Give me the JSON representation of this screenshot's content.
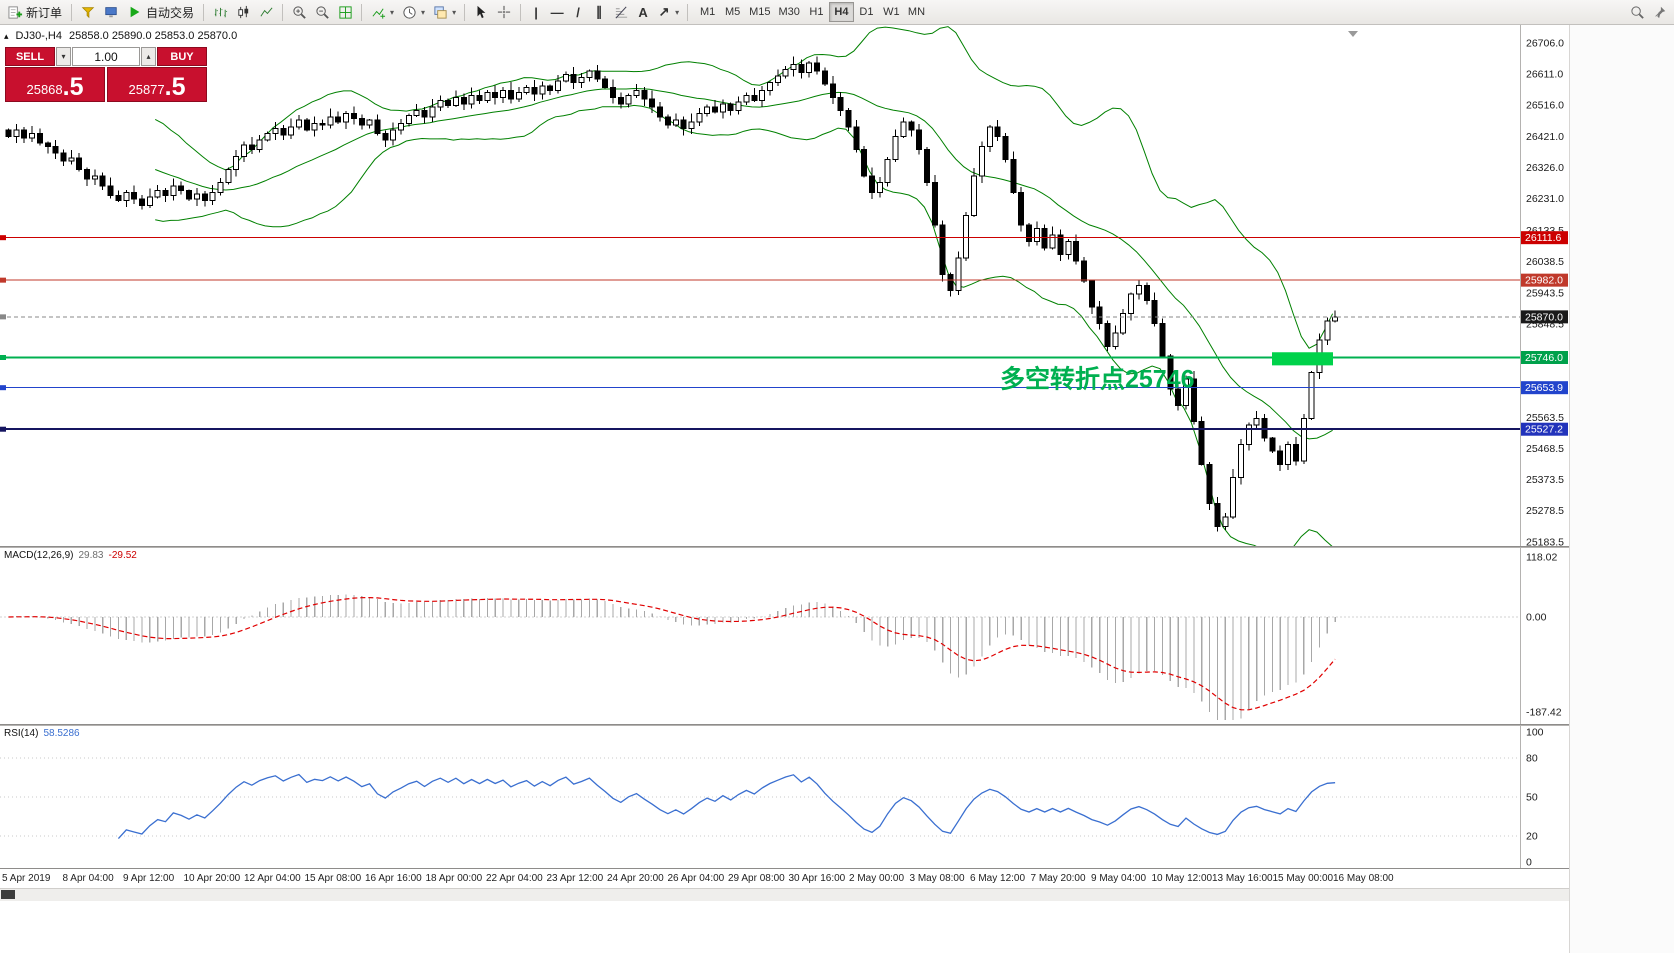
{
  "toolbar": {
    "new_order_label": "新订单",
    "auto_trading_label": "自动交易",
    "timeframes": [
      "M1",
      "M5",
      "M15",
      "M30",
      "H1",
      "H4",
      "D1",
      "W1",
      "MN"
    ],
    "active_timeframe": "H4"
  },
  "icons": {
    "chart_marker": "▴",
    "caret": "▾",
    "spin_up": "▴",
    "spin_down": "▾",
    "vertical_line": "|",
    "horizontal_line": "—",
    "trendline": "/",
    "channel": "∥",
    "text_tool": "A",
    "arrow_tool": "↗"
  },
  "chart_header": {
    "symbol_period": "DJ30-,H4",
    "ohlc": "25858.0 25890.0 25853.0 25870.0"
  },
  "order_panel": {
    "sell_label": "SELL",
    "buy_label": "BUY",
    "volume": "1.00",
    "sell_price": "25868",
    "sell_price_frac": ".5",
    "buy_price": "25877",
    "buy_price_frac": ".5"
  },
  "annotation": {
    "text": "多空转折点25746",
    "x": 1000,
    "price": 25655,
    "color": "#00b050"
  },
  "highlight_rect": {
    "x": 1272,
    "width": 61,
    "price_top": 25762,
    "price_bottom": 25722,
    "color": "#00d24a"
  },
  "price_axis": {
    "labels": [
      "26706.0",
      "26611.0",
      "26516.0",
      "26421.0",
      "26326.0",
      "26231.0",
      "26133.5",
      "26038.5",
      "25943.5",
      "25848.5",
      "25563.5",
      "25468.5",
      "25373.5",
      "25278.5",
      "25183.5"
    ]
  },
  "hlines": [
    {
      "label": "26111.6",
      "price": 26111.6,
      "color": "#cc0000",
      "tag": "#cc0000",
      "width": 1
    },
    {
      "label": "25982.0",
      "price": 25982.0,
      "color": "#c0392b",
      "tag": "#c0392b",
      "width": 1
    },
    {
      "label": "25870.0",
      "price": 25870.0,
      "color": "#888888",
      "tag": "#1a1a1a",
      "width": 1,
      "dash": "4,3",
      "name": "current-price-line"
    },
    {
      "label": "25746.0",
      "price": 25746.0,
      "color": "#00b050",
      "tag": "#00a14b",
      "width": 2
    },
    {
      "label": "25653.9",
      "price": 25653.9,
      "color": "#2244cc",
      "tag": "#2244cc",
      "width": 1
    },
    {
      "label": "25527.2",
      "price": 25527.2,
      "color": "#151560",
      "tag": "#2233bb",
      "width": 2
    }
  ],
  "colors": {
    "bull": "#ffffff",
    "bear": "#000000",
    "outline": "#000000",
    "bb": "#008000",
    "macd_hist": "#a8a8a8",
    "macd_signal": "#e00000",
    "rsi": "#3a6fd0",
    "axis_line": "#b4b2b0"
  },
  "macd": {
    "name": "MACD(12,26,9)",
    "value_main": "29.83",
    "value_signal": "-29.52",
    "axis": [
      "118.02",
      "0.00",
      "-187.42"
    ]
  },
  "rsi": {
    "name": "RSI(14)",
    "value": "58.5286",
    "axis": [
      "100",
      "80",
      "50",
      "20",
      "0"
    ],
    "levels": [
      80,
      50,
      20
    ]
  },
  "chart_data": {
    "type": "candlestick",
    "symbol": "DJ30-",
    "timeframe": "H4",
    "title": "DJ30-,H4",
    "y_range": {
      "min": 25180,
      "max": 26730
    },
    "last_candle": {
      "open": 25858.0,
      "high": 25890.0,
      "low": 25853.0,
      "close": 25870.0
    },
    "bollinger": {
      "period": 20,
      "deviation": 2
    },
    "closes": [
      26420,
      26440,
      26415,
      26430,
      26400,
      26390,
      26370,
      26345,
      26355,
      26320,
      26290,
      26300,
      26270,
      26240,
      26225,
      26250,
      26230,
      26210,
      26235,
      26255,
      26240,
      26270,
      26255,
      26230,
      26245,
      26225,
      26250,
      26280,
      26320,
      26360,
      26395,
      26380,
      26410,
      26430,
      26445,
      26425,
      26450,
      26470,
      26440,
      26460,
      26455,
      26480,
      26465,
      26490,
      26475,
      26455,
      26470,
      26430,
      26410,
      26440,
      26460,
      26485,
      26500,
      26480,
      26510,
      26530,
      26515,
      26540,
      26520,
      26545,
      26530,
      26555,
      26540,
      26560,
      26535,
      26555,
      26570,
      26550,
      26575,
      26560,
      26590,
      26610,
      26585,
      26600,
      26620,
      26595,
      26570,
      26540,
      26520,
      26545,
      26560,
      26535,
      26510,
      26480,
      26455,
      26470,
      26445,
      26465,
      26490,
      26510,
      26495,
      26520,
      26500,
      26525,
      26545,
      26530,
      26560,
      26585,
      26605,
      26625,
      26640,
      26615,
      26645,
      26620,
      26580,
      26540,
      26500,
      26450,
      26380,
      26300,
      26250,
      26280,
      26350,
      26420,
      26465,
      26440,
      26380,
      26280,
      26150,
      26000,
      25950,
      26050,
      26180,
      26300,
      26390,
      26450,
      26420,
      26350,
      26250,
      26150,
      26100,
      26140,
      26080,
      26120,
      26060,
      26100,
      26040,
      25980,
      25900,
      25850,
      25780,
      25820,
      25880,
      25940,
      25965,
      25920,
      25850,
      25750,
      25650,
      25600,
      25680,
      25550,
      25420,
      25300,
      25230,
      25260,
      25380,
      25480,
      25540,
      25560,
      25500,
      25460,
      25420,
      25480,
      25430,
      25560,
      25700,
      25800,
      25858,
      25870
    ],
    "x_labels": [
      "5 Apr 2019",
      "8 Apr 04:00",
      "9 Apr 12:00",
      "10 Apr 20:00",
      "12 Apr 04:00",
      "15 Apr 08:00",
      "16 Apr 16:00",
      "18 Apr 00:00",
      "22 Apr 04:00",
      "23 Apr 12:00",
      "24 Apr 20:00",
      "26 Apr 04:00",
      "29 Apr 08:00",
      "30 Apr 16:00",
      "2 May 00:00",
      "3 May 08:00",
      "6 May 12:00",
      "7 May 20:00",
      "9 May 04:00",
      "10 May 12:00",
      "13 May 16:00",
      "15 May 00:00",
      "16 May 08:00"
    ],
    "indicators": [
      {
        "type": "MACD",
        "params": "12,26,9",
        "value": 29.83,
        "signal": -29.52,
        "axis_max": 118.02,
        "axis_min": -187.42
      },
      {
        "type": "RSI",
        "params": "14",
        "value": 58.5286,
        "levels": [
          80,
          50,
          20
        ]
      }
    ]
  }
}
